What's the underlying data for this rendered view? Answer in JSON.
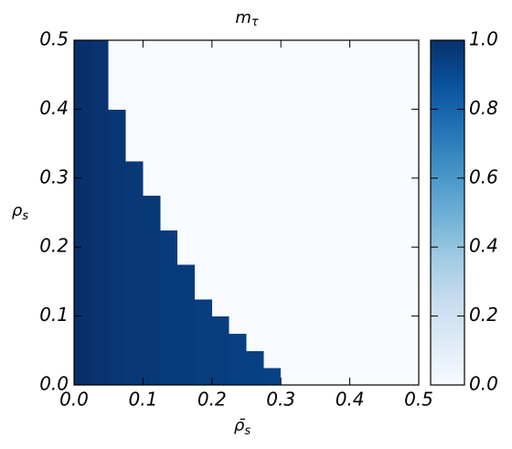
{
  "chart_data": {
    "type": "heatmap",
    "title": "m",
    "title_subscript": "τ",
    "xlabel": "ρ̄",
    "xlabel_subscript": "s",
    "ylabel": "ρ",
    "ylabel_subscript": "s",
    "xlim": [
      0,
      0.5
    ],
    "ylim": [
      0,
      0.5
    ],
    "zlim": [
      0,
      1
    ],
    "xticks": [
      {
        "value": 0,
        "label": "0.0"
      },
      0.1,
      0.2,
      0.3,
      0.4,
      0.5
    ],
    "yticks": [
      {
        "value": 0,
        "label": "0.0"
      },
      0.1,
      0.2,
      0.3,
      0.4,
      0.5
    ],
    "zticks": [
      {
        "value": 0,
        "label": "0.0"
      },
      0.2,
      0.4,
      0.6,
      0.8,
      {
        "value": 1,
        "label": "1.0"
      }
    ],
    "colormap": [
      "#f7fbff",
      "#deebf7",
      "#c6dbef",
      "#9ecae1",
      "#6baed6",
      "#4292c6",
      "#2171b5",
      "#08519c",
      "#08306b"
    ],
    "z": [
      [
        1.0,
        0.99,
        0.98,
        0.97,
        0.97,
        0.96,
        0.96,
        0.95,
        0.95,
        0.94,
        0.94,
        0.93,
        0,
        0,
        0,
        0,
        0,
        0,
        0,
        0
      ],
      [
        1.0,
        0.99,
        0.98,
        0.97,
        0.97,
        0.96,
        0.96,
        0.95,
        0.95,
        0.94,
        0.94,
        0,
        0,
        0,
        0,
        0,
        0,
        0,
        0,
        0
      ],
      [
        1.0,
        0.99,
        0.98,
        0.97,
        0.97,
        0.96,
        0.96,
        0.95,
        0.95,
        0.94,
        0,
        0,
        0,
        0,
        0,
        0,
        0,
        0,
        0,
        0
      ],
      [
        1.0,
        0.99,
        0.98,
        0.97,
        0.97,
        0.96,
        0.96,
        0.95,
        0.95,
        0,
        0,
        0,
        0,
        0,
        0,
        0,
        0,
        0,
        0,
        0
      ],
      [
        1.0,
        0.99,
        0.98,
        0.97,
        0.97,
        0.96,
        0.96,
        0.95,
        0,
        0,
        0,
        0,
        0,
        0,
        0,
        0,
        0,
        0,
        0,
        0
      ],
      [
        1.0,
        0.99,
        0.98,
        0.97,
        0.97,
        0.96,
        0.96,
        0,
        0,
        0,
        0,
        0,
        0,
        0,
        0,
        0,
        0,
        0,
        0,
        0
      ],
      [
        1.0,
        0.99,
        0.98,
        0.97,
        0.97,
        0.96,
        0.96,
        0,
        0,
        0,
        0,
        0,
        0,
        0,
        0,
        0,
        0,
        0,
        0,
        0
      ],
      [
        1.0,
        0.99,
        0.98,
        0.97,
        0.97,
        0.96,
        0,
        0,
        0,
        0,
        0,
        0,
        0,
        0,
        0,
        0,
        0,
        0,
        0,
        0
      ],
      [
        1.0,
        0.99,
        0.98,
        0.97,
        0.97,
        0.96,
        0,
        0,
        0,
        0,
        0,
        0,
        0,
        0,
        0,
        0,
        0,
        0,
        0,
        0
      ],
      [
        1.0,
        0.99,
        0.98,
        0.97,
        0.97,
        0,
        0,
        0,
        0,
        0,
        0,
        0,
        0,
        0,
        0,
        0,
        0,
        0,
        0,
        0
      ],
      [
        1.0,
        0.99,
        0.98,
        0.97,
        0.97,
        0,
        0,
        0,
        0,
        0,
        0,
        0,
        0,
        0,
        0,
        0,
        0,
        0,
        0,
        0
      ],
      [
        1.0,
        0.99,
        0.98,
        0.97,
        0,
        0,
        0,
        0,
        0,
        0,
        0,
        0,
        0,
        0,
        0,
        0,
        0,
        0,
        0,
        0
      ],
      [
        1.0,
        0.99,
        0.98,
        0.97,
        0,
        0,
        0,
        0,
        0,
        0,
        0,
        0,
        0,
        0,
        0,
        0,
        0,
        0,
        0,
        0
      ],
      [
        1.0,
        0.99,
        0.98,
        0,
        0,
        0,
        0,
        0,
        0,
        0,
        0,
        0,
        0,
        0,
        0,
        0,
        0,
        0,
        0,
        0
      ],
      [
        1.0,
        0.99,
        0.98,
        0,
        0,
        0,
        0,
        0,
        0,
        0,
        0,
        0,
        0,
        0,
        0,
        0,
        0,
        0,
        0,
        0
      ],
      [
        1.0,
        0.99,
        0.98,
        0,
        0,
        0,
        0,
        0,
        0,
        0,
        0,
        0,
        0,
        0,
        0,
        0,
        0,
        0,
        0,
        0
      ],
      [
        1.0,
        0.99,
        0,
        0,
        0,
        0,
        0,
        0,
        0,
        0,
        0,
        0,
        0,
        0,
        0,
        0,
        0,
        0,
        0,
        0
      ],
      [
        1.0,
        0.99,
        0,
        0,
        0,
        0,
        0,
        0,
        0,
        0,
        0,
        0,
        0,
        0,
        0,
        0,
        0,
        0,
        0,
        0
      ],
      [
        1.0,
        0.99,
        0,
        0,
        0,
        0,
        0,
        0,
        0,
        0,
        0,
        0,
        0,
        0,
        0,
        0,
        0,
        0,
        0,
        0
      ],
      [
        1.0,
        0.99,
        0,
        0,
        0,
        0,
        0,
        0,
        0,
        0,
        0,
        0,
        0,
        0,
        0,
        0,
        0,
        0,
        0,
        0
      ]
    ]
  }
}
